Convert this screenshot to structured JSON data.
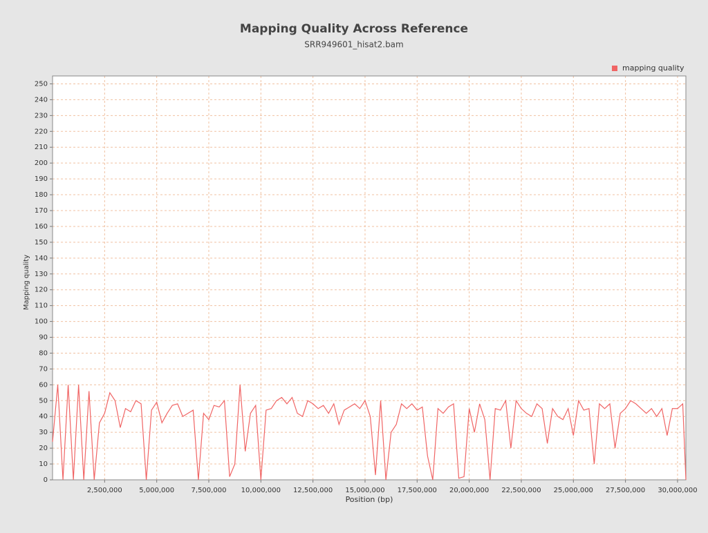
{
  "chart_data": {
    "type": "line",
    "title": "Mapping Quality Across Reference",
    "subtitle": "SRR949601_hisat2.bam",
    "xlabel": "Position (bp)",
    "ylabel": "Mapping quality",
    "legend": "top-right",
    "grid": true,
    "x": [
      0,
      250000,
      500000,
      750000,
      1000000,
      1250000,
      1500000,
      1750000,
      2000000,
      2250000,
      2500000,
      2750000,
      3000000,
      3250000,
      3500000,
      3750000,
      4000000,
      4250000,
      4500000,
      4750000,
      5000000,
      5250000,
      5500000,
      5750000,
      6000000,
      6250000,
      6500000,
      6750000,
      7000000,
      7250000,
      7500000,
      7750000,
      8000000,
      8250000,
      8500000,
      8750000,
      9000000,
      9250000,
      9500000,
      9750000,
      10000000,
      10250000,
      10500000,
      10750000,
      11000000,
      11250000,
      11500000,
      11750000,
      12000000,
      12250000,
      12500000,
      12750000,
      13000000,
      13250000,
      13500000,
      13750000,
      14000000,
      14250000,
      14500000,
      14750000,
      15000000,
      15250000,
      15500000,
      15750000,
      16000000,
      16250000,
      16500000,
      16750000,
      17000000,
      17250000,
      17500000,
      17750000,
      18000000,
      18250000,
      18500000,
      18750000,
      19000000,
      19250000,
      19500000,
      19750000,
      20000000,
      20250000,
      20500000,
      20750000,
      21000000,
      21250000,
      21500000,
      21750000,
      22000000,
      22250000,
      22500000,
      22750000,
      23000000,
      23250000,
      23500000,
      23750000,
      24000000,
      24250000,
      24500000,
      24750000,
      25000000,
      25250000,
      25500000,
      25750000,
      26000000,
      26250000,
      26500000,
      26750000,
      27000000,
      27250000,
      27500000,
      27750000,
      28000000,
      28250000,
      28500000,
      28750000,
      29000000,
      29250000,
      29500000,
      29750000,
      30000000,
      30250000,
      30400000
    ],
    "series": [
      {
        "name": "mapping quality",
        "color": "#f06464",
        "values": [
          24,
          60,
          0,
          60,
          0,
          60,
          0,
          56,
          0,
          36,
          42,
          55,
          50,
          33,
          45,
          43,
          50,
          48,
          0,
          44,
          49,
          36,
          42,
          47,
          48,
          40,
          42,
          44,
          0,
          42,
          38,
          47,
          46,
          50,
          2,
          10,
          60,
          18,
          42,
          47,
          0,
          44,
          45,
          50,
          52,
          48,
          52,
          42,
          40,
          50,
          48,
          45,
          47,
          42,
          48,
          35,
          44,
          46,
          48,
          45,
          50,
          40,
          3,
          50,
          0,
          30,
          35,
          48,
          45,
          48,
          44,
          46,
          15,
          0,
          45,
          42,
          46,
          48,
          1,
          2,
          45,
          30,
          48,
          38,
          0,
          45,
          44,
          50,
          20,
          50,
          45,
          42,
          40,
          48,
          45,
          23,
          45,
          40,
          38,
          45,
          28,
          50,
          44,
          45,
          10,
          48,
          45,
          48,
          20,
          42,
          45,
          50,
          48,
          45,
          42,
          45,
          40,
          45,
          28,
          45,
          45,
          48,
          0
        ]
      }
    ],
    "xlim": [
      0,
      30400000
    ],
    "ylim": [
      0,
      255
    ],
    "xticks": [
      {
        "value": 2500000,
        "label": "2,500,000"
      },
      {
        "value": 5000000,
        "label": "5,000,000"
      },
      {
        "value": 7500000,
        "label": "7,500,000"
      },
      {
        "value": 10000000,
        "label": "10,000,000"
      },
      {
        "value": 12500000,
        "label": "12,500,000"
      },
      {
        "value": 15000000,
        "label": "15,000,000"
      },
      {
        "value": 17500000,
        "label": "17,500,000"
      },
      {
        "value": 20000000,
        "label": "20,000,000"
      },
      {
        "value": 22500000,
        "label": "22,500,000"
      },
      {
        "value": 25000000,
        "label": "25,000,000"
      },
      {
        "value": 27500000,
        "label": "27,500,000"
      },
      {
        "value": 30000000,
        "label": "30,000,000"
      }
    ],
    "yticks": [
      0,
      10,
      20,
      30,
      40,
      50,
      60,
      70,
      80,
      90,
      100,
      110,
      120,
      130,
      140,
      150,
      160,
      170,
      180,
      190,
      200,
      210,
      220,
      230,
      240,
      250
    ]
  }
}
